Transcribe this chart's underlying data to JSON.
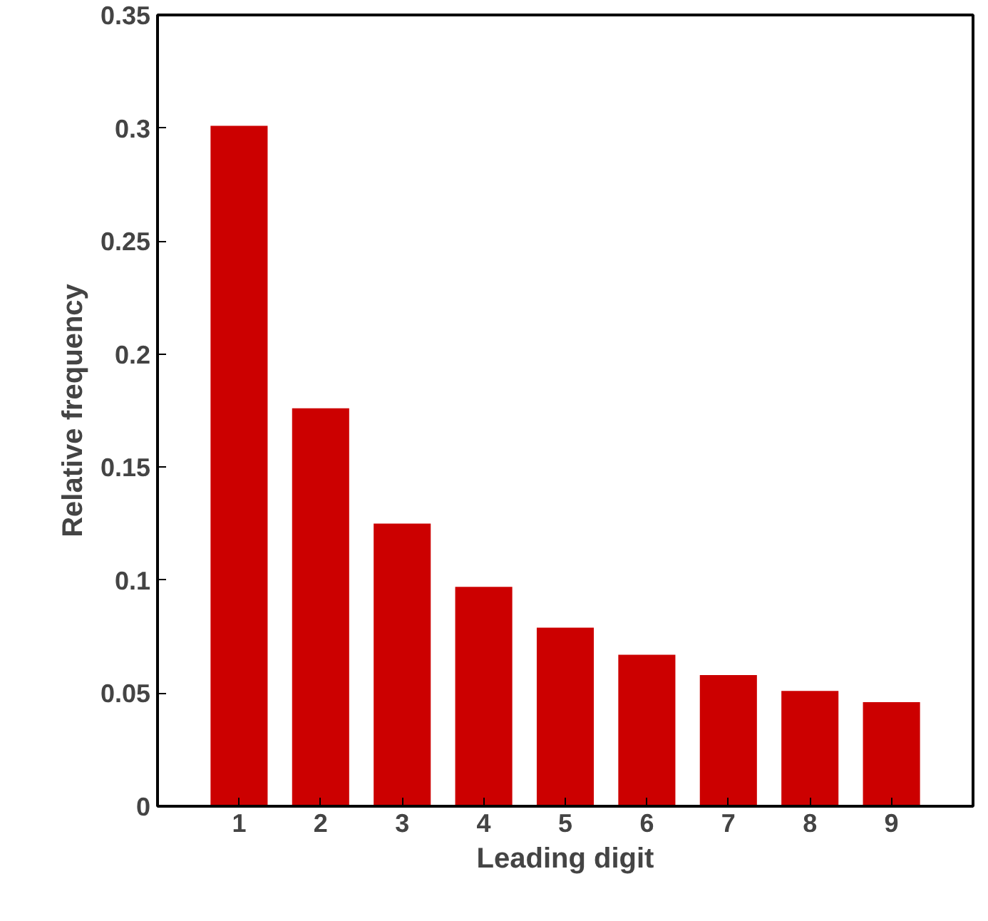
{
  "chart_data": {
    "type": "bar",
    "xlabel": "Leading digit",
    "ylabel": "Relative frequency",
    "categories": [
      "1",
      "2",
      "3",
      "4",
      "5",
      "6",
      "7",
      "8",
      "9"
    ],
    "values": [
      0.301,
      0.176,
      0.125,
      0.097,
      0.079,
      0.067,
      0.058,
      0.051,
      0.046
    ],
    "color": "#cc0000",
    "ylim": [
      0,
      0.35
    ],
    "yticks": [
      0,
      0.05,
      0.1,
      0.15,
      0.2,
      0.25,
      0.3,
      0.35
    ],
    "grid": false
  }
}
